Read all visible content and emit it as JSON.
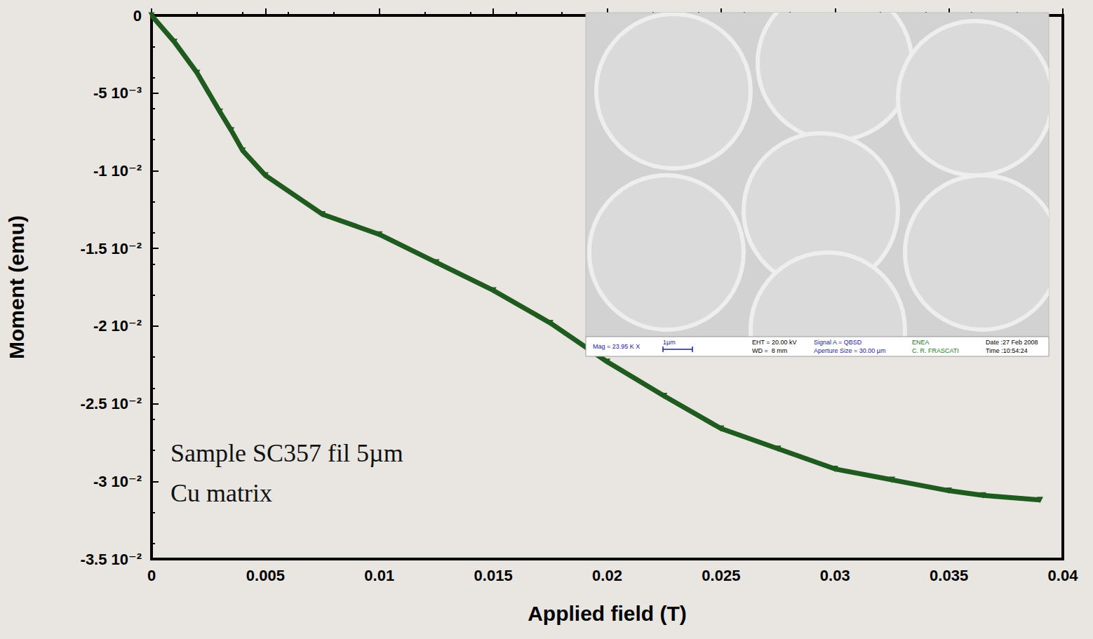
{
  "chart_data": {
    "type": "line",
    "x_label": "Applied field (T)",
    "y_label": "Moment (emu)",
    "series": [
      {
        "name": "SC357",
        "color": "#1f5a1f",
        "marker": "triangle",
        "x": [
          0,
          0.001,
          0.002,
          0.003,
          0.0035,
          0.004,
          0.005,
          0.0075,
          0.01,
          0.0125,
          0.015,
          0.0175,
          0.02,
          0.0225,
          0.025,
          0.0275,
          0.03,
          0.0325,
          0.035,
          0.0365,
          0.039
        ],
        "values": [
          0,
          -0.0017,
          -0.0037,
          -0.0062,
          -0.0074,
          -0.0087,
          -0.0103,
          -0.0128,
          -0.0141,
          -0.0159,
          -0.0177,
          -0.0198,
          -0.0223,
          -0.0245,
          -0.0266,
          -0.0279,
          -0.0292,
          -0.0299,
          -0.0306,
          -0.0309,
          -0.0312
        ]
      }
    ],
    "xlim": [
      0,
      0.04
    ],
    "xticks": [
      0,
      0.005,
      0.01,
      0.015,
      0.02,
      0.025,
      0.03,
      0.035,
      0.04
    ],
    "ylim": [
      -0.035,
      0
    ],
    "yticks": [
      {
        "value": -0.035,
        "label": "-3.5 10⁻²"
      },
      {
        "value": -0.03,
        "label": "-3 10⁻²"
      },
      {
        "value": -0.025,
        "label": "-2.5 10⁻²"
      },
      {
        "value": -0.02,
        "label": "-2 10⁻²"
      },
      {
        "value": -0.015,
        "label": "-1.5 10⁻²"
      },
      {
        "value": -0.01,
        "label": "-1 10⁻²"
      },
      {
        "value": -0.005,
        "label": "-5 10⁻³"
      },
      0
    ],
    "grid": false,
    "annotations": [
      "Sample SC357 fil 5µm",
      "Cu matrix"
    ],
    "inset": {
      "info": [
        [
          "Mag = 23.95 K X"
        ],
        [
          "1µm"
        ],
        [
          "EHT = 20.00 kV",
          "WD =  8 mm"
        ],
        [
          "Signal A = QBSD",
          "Aperture Size = 30.00 µm"
        ],
        [
          "ENEA",
          "C. R. FRASCATI"
        ],
        [
          "Date :27 Feb 2008",
          "Time :10:54:24"
        ]
      ]
    }
  }
}
